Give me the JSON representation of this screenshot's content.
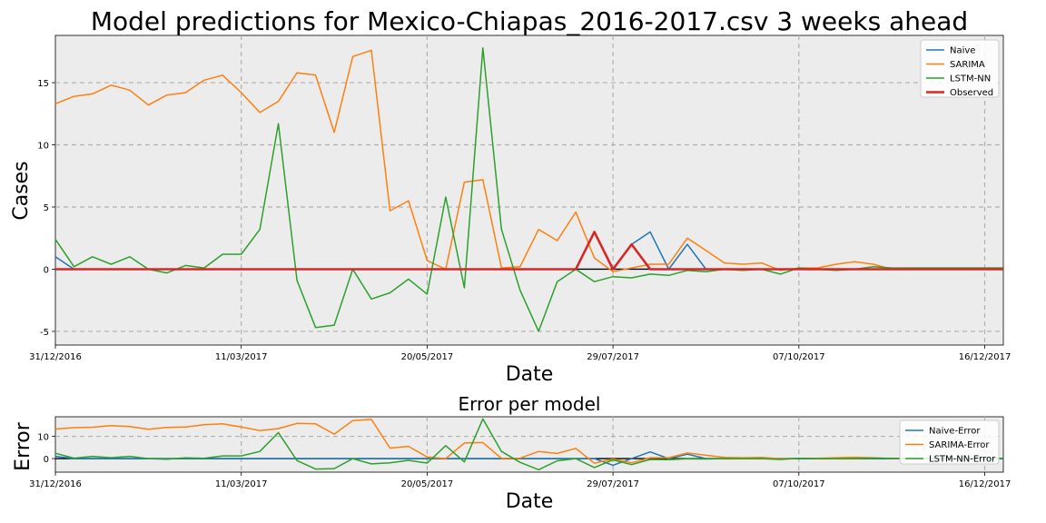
{
  "chart_data": [
    {
      "type": "line",
      "title": "Model predictions for Mexico-Chiapas_2016-2017.csv 3 weeks ahead",
      "xlabel": "Date",
      "ylabel": "Cases",
      "xtick_labels": [
        "31/12/2016",
        "11/03/2017",
        "20/05/2017",
        "29/07/2017",
        "07/10/2017",
        "16/12/2017"
      ],
      "xtick_weeks": [
        0,
        10,
        20,
        30,
        40,
        50
      ],
      "xlim": [
        0,
        51
      ],
      "yticks": [
        -5,
        0,
        5,
        10,
        15
      ],
      "ylim": [
        -6.1,
        18.8
      ],
      "grid": true,
      "legend_position": "top-right",
      "series": [
        {
          "name": "Naive",
          "color": "#1f77b4",
          "values": [
            1.0,
            0,
            0,
            0,
            0,
            0,
            0,
            0,
            0,
            0,
            0,
            0,
            0,
            0,
            0,
            0,
            0,
            0,
            0,
            0,
            0,
            0,
            0,
            0,
            0,
            0,
            0,
            0,
            0,
            3.0,
            0,
            2.0,
            3.0,
            0,
            2.0,
            0,
            0,
            0,
            0,
            0,
            0,
            0,
            0,
            0,
            0,
            0,
            0,
            0,
            0,
            0,
            0,
            0
          ]
        },
        {
          "name": "SARIMA",
          "color": "#ff7f0e",
          "values": [
            13.3,
            13.9,
            14.1,
            14.8,
            14.4,
            13.2,
            14.0,
            14.2,
            15.2,
            15.6,
            14.2,
            12.6,
            13.5,
            15.8,
            15.6,
            11.0,
            17.1,
            17.6,
            4.7,
            5.5,
            0.7,
            0.0,
            7.0,
            7.2,
            0.1,
            0.2,
            3.2,
            2.3,
            4.6,
            0.9,
            -0.2,
            0.1,
            0.4,
            0.4,
            2.5,
            1.5,
            0.5,
            0.4,
            0.5,
            -0.1,
            0.1,
            0.1,
            0.4,
            0.6,
            0.4,
            0.0,
            0.1,
            0.1,
            0.1,
            0.1,
            0.1,
            0.1
          ]
        },
        {
          "name": "LSTM-NN",
          "color": "#2ca02c",
          "values": [
            2.4,
            0.2,
            1.0,
            0.4,
            1.0,
            0.0,
            -0.3,
            0.3,
            0.1,
            1.2,
            1.2,
            3.2,
            11.7,
            -0.9,
            -4.7,
            -4.5,
            0.0,
            -2.4,
            -1.9,
            -0.8,
            -2.0,
            5.8,
            -1.5,
            17.8,
            3.2,
            -1.7,
            -5.0,
            -1.0,
            0.0,
            -1.0,
            -0.6,
            -0.7,
            -0.4,
            -0.5,
            -0.1,
            -0.2,
            0.0,
            -0.1,
            0.0,
            -0.4,
            0.1,
            0.0,
            -0.1,
            0.0,
            0.2,
            0.1,
            0.1,
            0.1,
            0.1,
            0.1,
            0.1,
            0.1
          ]
        },
        {
          "name": "Observed",
          "color": "#d62728",
          "values": [
            0,
            0,
            0,
            0,
            0,
            0,
            0,
            0,
            0,
            0,
            0,
            0,
            0,
            0,
            0,
            0,
            0,
            0,
            0,
            0,
            0,
            0,
            0,
            0,
            0,
            0,
            0,
            0,
            0,
            3.0,
            0,
            2.0,
            0,
            0,
            0,
            0,
            0,
            0,
            0,
            0,
            0,
            0,
            0,
            0,
            0,
            0,
            0,
            0,
            0,
            0,
            0,
            0
          ]
        }
      ]
    },
    {
      "type": "line",
      "title": "Error per model",
      "xlabel": "Date",
      "ylabel": "Error",
      "xtick_labels": [
        "31/12/2016",
        "11/03/2017",
        "20/05/2017",
        "29/07/2017",
        "07/10/2017",
        "16/12/2017"
      ],
      "xtick_weeks": [
        0,
        10,
        20,
        30,
        40,
        50
      ],
      "xlim": [
        0,
        51
      ],
      "yticks": [
        0,
        10
      ],
      "ylim": [
        -6.1,
        18.8
      ],
      "grid": true,
      "legend_position": "top-right",
      "series": [
        {
          "name": "Naive-Error",
          "color": "#1f77b4",
          "values": [
            1.0,
            0,
            0,
            0,
            0,
            0,
            0,
            0,
            0,
            0,
            0,
            0,
            0,
            0,
            0,
            0,
            0,
            0,
            0,
            0,
            0,
            0,
            0,
            0,
            0,
            0,
            0,
            0,
            0,
            0,
            -3.0,
            0,
            3.0,
            0,
            2.0,
            0,
            0,
            0,
            0,
            0,
            0,
            0,
            0,
            0,
            0,
            0,
            0,
            0,
            0,
            0,
            0,
            0
          ]
        },
        {
          "name": "SARIMA-Error",
          "color": "#ff7f0e",
          "values": [
            13.3,
            13.9,
            14.1,
            14.8,
            14.4,
            13.2,
            14.0,
            14.2,
            15.2,
            15.6,
            14.2,
            12.6,
            13.5,
            15.8,
            15.6,
            11.0,
            17.1,
            17.6,
            4.7,
            5.5,
            0.7,
            0.0,
            7.0,
            7.2,
            0.1,
            0.2,
            3.2,
            2.3,
            4.6,
            -2.1,
            -0.2,
            -1.9,
            0.4,
            0.4,
            2.5,
            1.5,
            0.5,
            0.4,
            0.5,
            -0.1,
            0.1,
            0.1,
            0.4,
            0.6,
            0.4,
            0.0,
            0.1,
            0.1,
            0.1,
            0.1,
            0.1,
            0.1
          ]
        },
        {
          "name": "LSTM-NN-Error",
          "color": "#2ca02c",
          "values": [
            2.4,
            0.2,
            1.0,
            0.4,
            1.0,
            0.0,
            -0.3,
            0.3,
            0.1,
            1.2,
            1.2,
            3.2,
            11.7,
            -0.9,
            -4.7,
            -4.5,
            0.0,
            -2.4,
            -1.9,
            -0.8,
            -2.0,
            5.8,
            -1.5,
            17.8,
            3.2,
            -1.7,
            -5.0,
            -1.0,
            0.0,
            -4.0,
            -0.6,
            -2.7,
            -0.4,
            -0.5,
            -0.1,
            -0.2,
            0.0,
            -0.1,
            0.0,
            -0.4,
            0.1,
            0.0,
            -0.1,
            0.0,
            0.2,
            0.1,
            0.1,
            0.1,
            0.1,
            0.1,
            0.1,
            0.1
          ]
        }
      ]
    }
  ]
}
